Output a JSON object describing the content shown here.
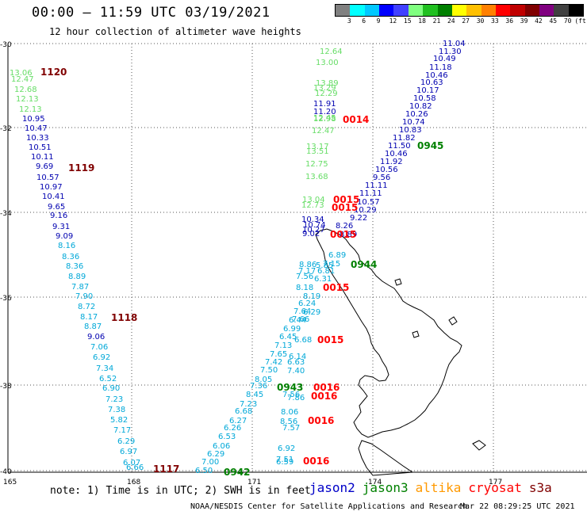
{
  "header": {
    "title": "00:00 – 11:59 UTC 03/19/2021",
    "subtitle": "12 hour collection of altimeter wave heights"
  },
  "colorbar": {
    "colors": [
      "#808080",
      "#00ffff",
      "#00c8ff",
      "#0000ff",
      "#4040ff",
      "#80ff80",
      "#20c020",
      "#008000",
      "#ffff00",
      "#ffc000",
      "#ff8000",
      "#ff0000",
      "#c00000",
      "#800000",
      "#800080",
      "#404040",
      "#000000"
    ],
    "labels": [
      "3",
      "6",
      "9",
      "12",
      "15",
      "18",
      "21",
      "24",
      "27",
      "30",
      "33",
      "36",
      "39",
      "42",
      "45",
      "70",
      "(ft)"
    ]
  },
  "axes": {
    "lat_ticks": [
      "-30",
      "-32",
      "-34",
      "-36",
      "-38",
      "-40"
    ],
    "lon_ticks": [
      "165",
      "168",
      "171",
      "174",
      "177"
    ]
  },
  "colors": {
    "jason2": "#0000c8",
    "jason3": "#008000",
    "altika": "#ff9900",
    "cryosat": "#ff0000",
    "s3a": "#800000",
    "swh_light_green": "#66dd66",
    "swh_dark_blue": "#0000b0",
    "swh_cyan": "#00a8d8",
    "swh_light_cyan": "#00c8e8"
  },
  "map_data": {
    "swh_labels": [
      [
        "13.06",
        12,
        95,
        "swh_light_green"
      ],
      [
        "12.47",
        14,
        103,
        "swh_light_green"
      ],
      [
        "12.68",
        18,
        116,
        "swh_light_green"
      ],
      [
        "12.13",
        20,
        128,
        "swh_light_green"
      ],
      [
        "12.13",
        24,
        141,
        "swh_light_green"
      ],
      [
        "10.95",
        28,
        153,
        "swh_dark_blue"
      ],
      [
        "10.47",
        31,
        165,
        "swh_dark_blue"
      ],
      [
        "10.33",
        33,
        177,
        "swh_dark_blue"
      ],
      [
        "10.51",
        36,
        189,
        "swh_dark_blue"
      ],
      [
        "10.11",
        39,
        201,
        "swh_dark_blue"
      ],
      [
        "9.69",
        45,
        213,
        "swh_dark_blue"
      ],
      [
        "10.57",
        46,
        227,
        "swh_dark_blue"
      ],
      [
        "10.97",
        50,
        239,
        "swh_dark_blue"
      ],
      [
        "10.41",
        53,
        251,
        "swh_dark_blue"
      ],
      [
        "9.65",
        60,
        264,
        "swh_dark_blue"
      ],
      [
        "9.16",
        63,
        275,
        "swh_dark_blue"
      ],
      [
        "9.31",
        66,
        289,
        "swh_dark_blue"
      ],
      [
        "9.09",
        70,
        301,
        "swh_dark_blue"
      ],
      [
        "8.16",
        73,
        313,
        "swh_cyan"
      ],
      [
        "8.36",
        78,
        327,
        "swh_cyan"
      ],
      [
        "8.36",
        83,
        339,
        "swh_cyan"
      ],
      [
        "8.89",
        86,
        352,
        "swh_cyan"
      ],
      [
        "7.87",
        90,
        365,
        "swh_cyan"
      ],
      [
        "7.90",
        95,
        377,
        "swh_cyan"
      ],
      [
        "8.72",
        98,
        390,
        "swh_cyan"
      ],
      [
        "8.17",
        101,
        403,
        "swh_cyan"
      ],
      [
        "8.87",
        106,
        415,
        "swh_cyan"
      ],
      [
        "9.06",
        110,
        428,
        "swh_dark_blue"
      ],
      [
        "7.06",
        114,
        441,
        "swh_cyan"
      ],
      [
        "6.92",
        117,
        454,
        "swh_cyan"
      ],
      [
        "7.34",
        121,
        468,
        "swh_cyan"
      ],
      [
        "6.52",
        125,
        481,
        "swh_cyan"
      ],
      [
        "6.90",
        129,
        493,
        "swh_cyan"
      ],
      [
        "7.23",
        133,
        507,
        "swh_cyan"
      ],
      [
        "7.38",
        136,
        520,
        "swh_cyan"
      ],
      [
        "5.82",
        139,
        533,
        "swh_cyan"
      ],
      [
        "7.17",
        143,
        546,
        "swh_cyan"
      ],
      [
        "6.29",
        148,
        560,
        "swh_cyan"
      ],
      [
        "6.97",
        151,
        573,
        "swh_cyan"
      ],
      [
        "6.07",
        155,
        587,
        "swh_cyan"
      ],
      [
        "6.66",
        159,
        593,
        "swh_cyan"
      ],
      [
        "6.50",
        246,
        597,
        "swh_cyan"
      ],
      [
        "7.00",
        254,
        586,
        "swh_cyan"
      ],
      [
        "6.29",
        261,
        576,
        "swh_cyan"
      ],
      [
        "6.06",
        268,
        566,
        "swh_cyan"
      ],
      [
        "6.53",
        275,
        554,
        "swh_cyan"
      ],
      [
        "6.26",
        282,
        543,
        "swh_cyan"
      ],
      [
        "6.27",
        289,
        534,
        "swh_cyan"
      ],
      [
        "6.68",
        296,
        522,
        "swh_cyan"
      ],
      [
        "7.23",
        302,
        513,
        "swh_cyan"
      ],
      [
        "8.45",
        310,
        501,
        "swh_cyan"
      ],
      [
        "7.36",
        315,
        490,
        "swh_cyan"
      ],
      [
        "8.05",
        321,
        482,
        "swh_cyan"
      ],
      [
        "7.50",
        328,
        470,
        "swh_cyan"
      ],
      [
        "7.42",
        334,
        460,
        "swh_cyan"
      ],
      [
        "7.65",
        340,
        450,
        "swh_cyan"
      ],
      [
        "7.13",
        346,
        439,
        "swh_cyan"
      ],
      [
        "6.45",
        352,
        428,
        "swh_cyan"
      ],
      [
        "6.99",
        357,
        418,
        "swh_cyan"
      ],
      [
        "6.44",
        364,
        407,
        "swh_cyan"
      ],
      [
        "7.64",
        370,
        396,
        "swh_cyan"
      ],
      [
        "6.24",
        376,
        386,
        "swh_cyan"
      ],
      [
        "8.18",
        373,
        366,
        "swh_cyan"
      ],
      [
        "7.56",
        373,
        352,
        "swh_cyan"
      ],
      [
        "7.17",
        376,
        345,
        "swh_cyan"
      ],
      [
        "8.86",
        377,
        337,
        "swh_cyan"
      ],
      [
        "6.31",
        396,
        355,
        "swh_cyan"
      ],
      [
        "6.81",
        400,
        345,
        "swh_cyan"
      ],
      [
        "7.15",
        407,
        336,
        "swh_cyan"
      ],
      [
        "6.89",
        414,
        325,
        "swh_cyan"
      ],
      [
        "5.85",
        398,
        338,
        "swh_cyan"
      ],
      [
        "8.19",
        382,
        377,
        "swh_cyan"
      ],
      [
        "6.29",
        382,
        397,
        "swh_cyan"
      ],
      [
        "7.66",
        368,
        406,
        "swh_cyan"
      ],
      [
        "6.68",
        371,
        432,
        "swh_cyan"
      ],
      [
        "6.63",
        362,
        460,
        "swh_cyan"
      ],
      [
        "6.14",
        364,
        453,
        "swh_cyan"
      ],
      [
        "7.40",
        362,
        471,
        "swh_cyan"
      ],
      [
        "7.56",
        356,
        501,
        "swh_cyan"
      ],
      [
        "7.86",
        362,
        505,
        "swh_cyan"
      ],
      [
        "8.06",
        354,
        523,
        "swh_cyan"
      ],
      [
        "8.56",
        353,
        535,
        "swh_cyan"
      ],
      [
        "7.57",
        356,
        543,
        "swh_cyan"
      ],
      [
        "6.92",
        350,
        569,
        "swh_cyan"
      ],
      [
        "7.51",
        348,
        583,
        "swh_cyan"
      ],
      [
        "6.59",
        348,
        586,
        "swh_cyan"
      ],
      [
        "12.64",
        403,
        68,
        "swh_light_green"
      ],
      [
        "13.00",
        398,
        82,
        "swh_light_green"
      ],
      [
        "13.89",
        398,
        108,
        "swh_light_green"
      ],
      [
        "13.29",
        395,
        114,
        "swh_light_green"
      ],
      [
        "12.29",
        397,
        121,
        "swh_light_green"
      ],
      [
        "11.91",
        395,
        134,
        "swh_dark_blue"
      ],
      [
        "11.20",
        395,
        144,
        "swh_dark_blue"
      ],
      [
        "12.98",
        395,
        153,
        "swh_light_green"
      ],
      [
        "12.45",
        395,
        152,
        "swh_light_green"
      ],
      [
        "12.47",
        393,
        168,
        "swh_light_green"
      ],
      [
        "13.17",
        386,
        188,
        "swh_light_green"
      ],
      [
        "13.51",
        386,
        194,
        "swh_light_green"
      ],
      [
        "12.75",
        385,
        210,
        "swh_light_green"
      ],
      [
        "13.68",
        385,
        226,
        "swh_light_green"
      ],
      [
        "13.04",
        381,
        255,
        "swh_light_green"
      ],
      [
        "12.73",
        380,
        262,
        "swh_light_green"
      ],
      [
        "10.34",
        380,
        280,
        "swh_dark_blue"
      ],
      [
        "10.74",
        382,
        287,
        "swh_dark_blue"
      ],
      [
        "10.27",
        381,
        293,
        "swh_dark_blue"
      ],
      [
        "9.02",
        381,
        298,
        "swh_dark_blue"
      ],
      [
        "11.04",
        558,
        58,
        "swh_dark_blue"
      ],
      [
        "11.30",
        553,
        68,
        "swh_dark_blue"
      ],
      [
        "10.49",
        546,
        77,
        "swh_dark_blue"
      ],
      [
        "11.18",
        541,
        88,
        "swh_dark_blue"
      ],
      [
        "10.46",
        536,
        98,
        "swh_dark_blue"
      ],
      [
        "10.63",
        530,
        107,
        "swh_dark_blue"
      ],
      [
        "10.17",
        525,
        117,
        "swh_dark_blue"
      ],
      [
        "10.58",
        521,
        127,
        "swh_dark_blue"
      ],
      [
        "10.82",
        516,
        137,
        "swh_dark_blue"
      ],
      [
        "10.26",
        511,
        147,
        "swh_dark_blue"
      ],
      [
        "10.74",
        507,
        157,
        "swh_dark_blue"
      ],
      [
        "10.83",
        503,
        167,
        "swh_dark_blue"
      ],
      [
        "11.82",
        495,
        177,
        "swh_dark_blue"
      ],
      [
        "11.50",
        489,
        187,
        "swh_dark_blue"
      ],
      [
        "10.46",
        485,
        197,
        "swh_dark_blue"
      ],
      [
        "11.92",
        479,
        207,
        "swh_dark_blue"
      ],
      [
        "10.56",
        473,
        217,
        "swh_dark_blue"
      ],
      [
        "9.56",
        470,
        227,
        "swh_dark_blue"
      ],
      [
        "11.11",
        460,
        237,
        "swh_dark_blue"
      ],
      [
        "11.11",
        453,
        247,
        "swh_dark_blue"
      ],
      [
        "10.57",
        450,
        258,
        "swh_dark_blue"
      ],
      [
        "10.29",
        446,
        268,
        "swh_dark_blue"
      ],
      [
        "9.22",
        441,
        278,
        "swh_dark_blue"
      ],
      [
        "8.26",
        423,
        288,
        "swh_dark_blue"
      ],
      [
        "8.89",
        428,
        299,
        "swh_dark_blue"
      ]
    ],
    "time_labels": [
      [
        "1120",
        51,
        95,
        "s3a"
      ],
      [
        "1119",
        86,
        216,
        "s3a"
      ],
      [
        "1118",
        140,
        405,
        "s3a"
      ],
      [
        "1117",
        193,
        596,
        "s3a"
      ],
      [
        "0942",
        282,
        600,
        "jason3"
      ],
      [
        "0943",
        349,
        493,
        "jason3"
      ],
      [
        "0944",
        442,
        338,
        "jason3"
      ],
      [
        "0945",
        526,
        188,
        "jason3"
      ],
      [
        "0014",
        432,
        155,
        "cryosat"
      ],
      [
        "0015",
        420,
        256,
        "cryosat"
      ],
      [
        "0015",
        418,
        266,
        "cryosat"
      ],
      [
        "0015",
        416,
        300,
        "cryosat"
      ],
      [
        "0015",
        407,
        367,
        "cryosat"
      ],
      [
        "0015",
        400,
        433,
        "cryosat"
      ],
      [
        "0016",
        395,
        493,
        "cryosat"
      ],
      [
        "0016",
        392,
        504,
        "cryosat"
      ],
      [
        "0016",
        388,
        535,
        "cryosat"
      ],
      [
        "0016",
        382,
        586,
        "cryosat"
      ]
    ]
  },
  "footer": {
    "note": "note: 1) Time is in UTC; 2) SWH is in feet",
    "legend": [
      {
        "name": "jason2",
        "color": "jason2"
      },
      {
        "name": "jason3",
        "color": "jason3"
      },
      {
        "name": "altika",
        "color": "altika"
      },
      {
        "name": "cryosat",
        "color": "cryosat"
      },
      {
        "name": "s3a",
        "color": "s3a"
      }
    ],
    "credit": "NOAA/NESDIS Center for Satellite Applications and Research",
    "timestamp": "Mar 22 08:29:25 UTC 2021"
  }
}
